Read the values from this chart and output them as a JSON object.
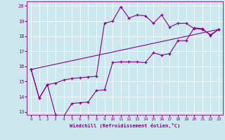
{
  "title": "",
  "xlabel": "Windchill (Refroidissement éolien,°C)",
  "bg_color": "#cce8ee",
  "line_color": "#880088",
  "xlim": [
    -0.5,
    23.5
  ],
  "ylim": [
    12.8,
    20.3
  ],
  "yticks": [
    13,
    14,
    15,
    16,
    17,
    18,
    19,
    20
  ],
  "xticks": [
    0,
    1,
    2,
    3,
    4,
    5,
    6,
    7,
    8,
    9,
    10,
    11,
    12,
    13,
    14,
    15,
    16,
    17,
    18,
    19,
    20,
    21,
    22,
    23
  ],
  "series1_x": [
    0,
    1,
    2,
    3,
    4,
    5,
    6,
    7,
    8,
    9,
    10,
    11,
    12,
    13,
    14,
    15,
    16,
    17,
    18,
    19,
    20,
    21,
    22,
    23
  ],
  "series1_y": [
    15.8,
    13.9,
    14.8,
    14.9,
    15.1,
    15.2,
    15.25,
    15.3,
    15.35,
    18.85,
    19.0,
    19.95,
    19.2,
    19.4,
    19.35,
    18.85,
    19.4,
    18.6,
    18.85,
    18.85,
    18.5,
    18.45,
    18.1,
    18.45
  ],
  "series2_x": [
    0,
    1,
    2,
    3,
    4,
    5,
    6,
    7,
    8,
    9,
    10,
    11,
    12,
    13,
    14,
    15,
    16,
    17,
    18,
    19,
    20,
    21,
    22,
    23
  ],
  "series2_y": [
    15.8,
    13.9,
    14.8,
    12.8,
    12.7,
    13.55,
    13.6,
    13.65,
    14.4,
    14.45,
    16.25,
    16.3,
    16.3,
    16.3,
    16.25,
    16.9,
    16.75,
    16.85,
    17.7,
    17.7,
    18.55,
    18.5,
    18.05,
    18.45
  ],
  "series3_x": [
    0,
    23
  ],
  "series3_y": [
    15.8,
    18.45
  ]
}
